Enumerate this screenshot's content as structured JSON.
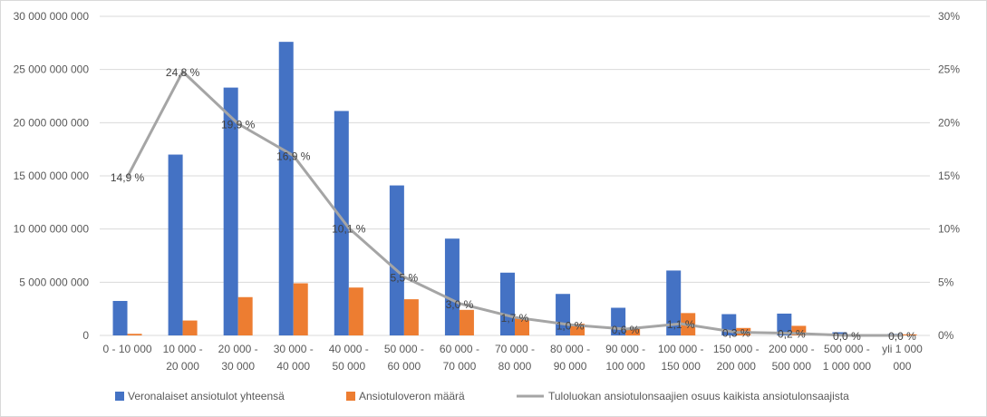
{
  "chart_data": {
    "type": "bar",
    "categories": [
      [
        "0 - 10 000"
      ],
      [
        "10 000 -",
        "20 000"
      ],
      [
        "20 000 -",
        "30 000"
      ],
      [
        "30 000 -",
        "40 000"
      ],
      [
        "40 000 -",
        "50 000"
      ],
      [
        "50 000 -",
        "60 000"
      ],
      [
        "60 000 -",
        "70 000"
      ],
      [
        "70 000 -",
        "80 000"
      ],
      [
        "80 000 -",
        "90 000"
      ],
      [
        "90 000 -",
        "100 000"
      ],
      [
        "100 000 -",
        "150 000"
      ],
      [
        "150 000 -",
        "200 000"
      ],
      [
        "200 000 -",
        "500 000"
      ],
      [
        "500 000 -",
        "1 000 000"
      ],
      [
        "yli 1 000",
        "000"
      ]
    ],
    "left_axis": {
      "min": 0,
      "max": 30000000000,
      "step": 5000000000,
      "tick_labels": [
        "0",
        "5 000 000 000",
        "10 000 000 000",
        "15 000 000 000",
        "20 000 000 000",
        "25 000 000 000",
        "30 000 000 000"
      ]
    },
    "right_axis": {
      "min": 0,
      "max": 30,
      "step": 5,
      "tick_labels": [
        "0%",
        "5%",
        "10%",
        "15%",
        "20%",
        "25%",
        "30%"
      ]
    },
    "grid": true,
    "legend_position": "bottom",
    "series": [
      {
        "name": "Veronalaiset ansiotulot yhteensä",
        "kind": "bar",
        "axis": "left",
        "color": "#4472c4",
        "values": [
          3240000000,
          17000000000,
          23300000000,
          27600000000,
          21100000000,
          14100000000,
          9100000000,
          5900000000,
          3900000000,
          2600000000,
          6100000000,
          2000000000,
          2050000000,
          300000000,
          150000000
        ]
      },
      {
        "name": "Ansiotuloveron määrä",
        "kind": "bar",
        "axis": "left",
        "color": "#ed7d31",
        "values": [
          150000000,
          1400000000,
          3600000000,
          4900000000,
          4500000000,
          3400000000,
          2400000000,
          1600000000,
          1100000000,
          700000000,
          2100000000,
          700000000,
          900000000,
          100000000,
          100000000
        ]
      },
      {
        "name": "Tuloluokan ansiotulonsaajien osuus kaikista ansiotulonsaajista",
        "kind": "line",
        "axis": "right",
        "color": "#a5a5a5",
        "values": [
          14.9,
          24.8,
          19.9,
          16.9,
          10.1,
          5.5,
          3.0,
          1.7,
          1.0,
          0.6,
          1.1,
          0.3,
          0.2,
          0.0,
          0.0
        ],
        "data_labels": [
          "14,9 %",
          "24,8 %",
          "19,9 %",
          "16,9 %",
          "10,1 %",
          "5,5 %",
          "3,0 %",
          "1,7 %",
          "1,0 %",
          "0,6 %",
          "1,1 %",
          "0,3 %",
          "0,2 %",
          "0,0 %",
          "0,0 %"
        ]
      }
    ]
  }
}
